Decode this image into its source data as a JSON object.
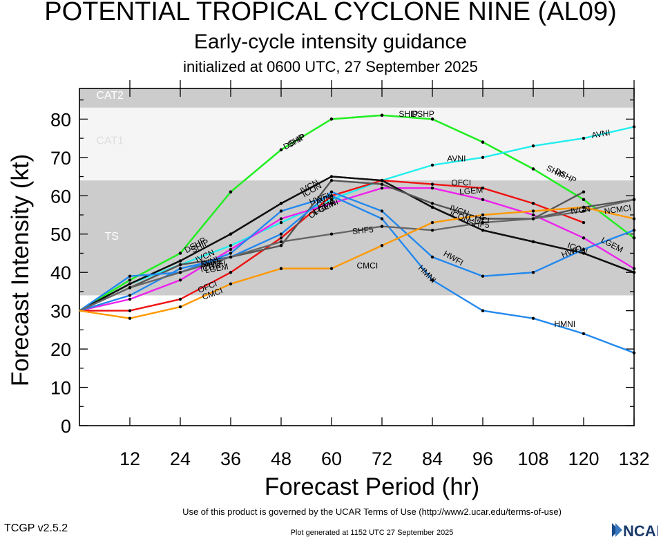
{
  "header": {
    "title": "POTENTIAL TROPICAL CYCLONE NINE (AL09)",
    "subtitle": "Early-cycle intensity guidance",
    "init": "initialized at 0600 UTC, 27 September 2025"
  },
  "footer": {
    "terms": "Use of this product is governed by the UCAR Terms of Use (http://www2.ucar.edu/terms-of-use)",
    "version": "TCGP v2.5.2",
    "generated": "Plot generated at 1152 UTC   27 September 2025",
    "logo_text": "NCAR"
  },
  "chart_data": {
    "type": "line",
    "title": "POTENTIAL TROPICAL CYCLONE NINE (AL09)",
    "xlabel": "Forecast Period (hr)",
    "ylabel": "Forecast Intensity (kt)",
    "xlim": [
      0,
      132
    ],
    "ylim": [
      0,
      88
    ],
    "xticks": [
      12,
      24,
      36,
      48,
      60,
      72,
      84,
      96,
      108,
      120,
      132
    ],
    "yticks": [
      0,
      10,
      20,
      30,
      40,
      50,
      60,
      70,
      80
    ],
    "bands": [
      {
        "name": "TS",
        "range": [
          34,
          64
        ],
        "color": "#cccccc"
      },
      {
        "name": "CAT1",
        "range": [
          64,
          83
        ],
        "color": "#f5f5f5"
      },
      {
        "name": "CAT2",
        "range": [
          83,
          88
        ],
        "color": "#cccccc"
      }
    ],
    "series": [
      {
        "name": "DSHP",
        "color": "#22ee22",
        "x": [
          0,
          12,
          24,
          36,
          48,
          60,
          72,
          84,
          96,
          108,
          120,
          132
        ],
        "y": [
          30,
          38,
          45,
          61,
          72,
          80,
          81,
          80,
          74,
          67,
          59,
          49
        ]
      },
      {
        "name": "SHIP",
        "color": "#22ee22",
        "x": [
          0,
          12,
          24,
          36,
          48,
          60,
          72,
          84,
          96,
          108,
          120,
          132
        ],
        "y": [
          30,
          38,
          45,
          61,
          72,
          80,
          81,
          80,
          74,
          67,
          59,
          49
        ]
      },
      {
        "name": "AVNI",
        "color": "#22eeee",
        "x": [
          0,
          12,
          24,
          36,
          48,
          60,
          72,
          84,
          96,
          108,
          120,
          132
        ],
        "y": [
          30,
          37,
          42,
          47,
          53,
          59,
          64,
          68,
          70,
          73,
          75,
          78
        ]
      },
      {
        "name": "OFCI",
        "color": "#ee1111",
        "x": [
          0,
          12,
          24,
          36,
          48,
          60,
          72,
          84,
          96,
          108,
          120
        ],
        "y": [
          30,
          30,
          33,
          40,
          49,
          60,
          64,
          63,
          62,
          58,
          53
        ]
      },
      {
        "name": "LGEM",
        "color": "#ee22ee",
        "x": [
          0,
          12,
          24,
          36,
          48,
          60,
          72,
          84,
          96,
          108,
          120,
          132
        ],
        "y": [
          30,
          33,
          38,
          46,
          54,
          58,
          62,
          62,
          59,
          55,
          49,
          41
        ]
      },
      {
        "name": "IVCN",
        "color": "#111111",
        "x": [
          0,
          12,
          24,
          36,
          48,
          60,
          72,
          84,
          96,
          108,
          120,
          132
        ],
        "y": [
          30,
          37,
          43,
          50,
          58,
          65,
          64,
          57,
          51,
          48,
          45,
          40
        ]
      },
      {
        "name": "ICON",
        "color": "#111111",
        "x": [
          0,
          12,
          24,
          36,
          48,
          60,
          72,
          84,
          96,
          108,
          120,
          132
        ],
        "y": [
          30,
          37,
          43,
          50,
          58,
          65,
          64,
          57,
          51,
          48,
          45,
          40
        ]
      },
      {
        "name": "IVCN",
        "color": "#555555",
        "x": [
          0,
          12,
          24,
          36,
          48,
          60,
          72,
          84,
          96,
          108,
          120,
          132
        ],
        "y": [
          30,
          36,
          42,
          44,
          47,
          64,
          63,
          58,
          54,
          54,
          57,
          59
        ]
      },
      {
        "name": "NCMCI",
        "color": "#555555",
        "x": [
          108,
          120
        ],
        "y": [
          54,
          61
        ]
      },
      {
        "name": "HWFI",
        "color": "#2288ee",
        "x": [
          0,
          12,
          24,
          36,
          48,
          60,
          72,
          84,
          96,
          108,
          120,
          132
        ],
        "y": [
          30,
          34,
          41,
          44,
          50,
          61,
          56,
          44,
          39,
          40,
          46,
          51
        ]
      },
      {
        "name": "HMNI",
        "color": "#2288ee",
        "x": [
          0,
          12,
          24,
          36,
          48,
          60,
          72,
          84,
          96,
          108,
          120,
          132
        ],
        "y": [
          30,
          39,
          40,
          45,
          56,
          60,
          54,
          38,
          30,
          28,
          24,
          19
        ]
      },
      {
        "name": "SHF5",
        "color": "#666666",
        "x": [
          0,
          12,
          24,
          36,
          48,
          60,
          72,
          84,
          96,
          108,
          120,
          132
        ],
        "y": [
          30,
          36,
          40,
          44,
          48,
          50,
          52,
          51,
          53,
          54,
          56,
          59
        ]
      },
      {
        "name": "CMCI",
        "color": "#ff9900",
        "x": [
          0,
          12,
          24,
          36,
          48,
          60,
          72,
          84,
          96,
          108,
          120,
          132
        ],
        "y": [
          30,
          28,
          31,
          37,
          41,
          41,
          47,
          53,
          55,
          56,
          57,
          54
        ]
      }
    ],
    "labels": [
      {
        "text": "CAT2",
        "x": 4,
        "y": 85.3,
        "color": "#ffffff",
        "size": 16
      },
      {
        "text": "CAT1",
        "x": 4,
        "y": 73.5,
        "color": "#dddddd",
        "size": 16
      },
      {
        "text": "TS",
        "x": 6,
        "y": 48.5,
        "color": "#ffffff",
        "size": 16
      },
      {
        "text": "SHIP",
        "x": 27,
        "y": 45,
        "color": "#000000",
        "size": 12,
        "rot": -30
      },
      {
        "text": "DSHP",
        "x": 25.5,
        "y": 45,
        "color": "#000000",
        "size": 12,
        "rot": -30
      },
      {
        "text": "SHIP",
        "x": 50,
        "y": 72.5,
        "color": "#000000",
        "size": 12,
        "rot": -30
      },
      {
        "text": "DSHP",
        "x": 49,
        "y": 72,
        "color": "#000000",
        "size": 12,
        "rot": -30
      },
      {
        "text": "SHIP",
        "x": 76,
        "y": 80.6,
        "color": "#000000",
        "size": 12,
        "rot": 0
      },
      {
        "text": "DSHP",
        "x": 79,
        "y": 80.6,
        "color": "#000000",
        "size": 12,
        "rot": 0
      },
      {
        "text": "SHIP",
        "x": 111,
        "y": 66.8,
        "color": "#000000",
        "size": 12,
        "rot": 28
      },
      {
        "text": "DSHP",
        "x": 113,
        "y": 66,
        "color": "#000000",
        "size": 12,
        "rot": 28
      },
      {
        "text": "AVNI",
        "x": 87.5,
        "y": 69,
        "color": "#000000",
        "size": 12,
        "rot": 0
      },
      {
        "text": "AVNI",
        "x": 122,
        "y": 75,
        "color": "#000000",
        "size": 12,
        "rot": -10
      },
      {
        "text": "IVCN",
        "x": 28,
        "y": 42.5,
        "color": "#000000",
        "size": 12,
        "rot": -25
      },
      {
        "text": "AVNI",
        "x": 29,
        "y": 41.2,
        "color": "#000000",
        "size": 12,
        "rot": -20
      },
      {
        "text": "ICON",
        "x": 29,
        "y": 40,
        "color": "#000000",
        "size": 12,
        "rot": -15
      },
      {
        "text": "SHF5",
        "x": 29,
        "y": 41.3,
        "color": "#000000",
        "size": 12,
        "rot": -10
      },
      {
        "text": "LGEM",
        "x": 30,
        "y": 39.8,
        "color": "#000000",
        "size": 12,
        "rot": -10
      },
      {
        "text": "HWFI",
        "x": 30,
        "y": 40.8,
        "color": "#000000",
        "size": 12,
        "rot": -10
      },
      {
        "text": "OFCI",
        "x": 28.5,
        "y": 34.6,
        "color": "#000000",
        "size": 12,
        "rot": -22
      },
      {
        "text": "CMCI",
        "x": 29.5,
        "y": 32.8,
        "color": "#000000",
        "size": 12,
        "rot": -20
      },
      {
        "text": "IVCN",
        "x": 53,
        "y": 60.5,
        "color": "#000000",
        "size": 12,
        "rot": -30
      },
      {
        "text": "ICON",
        "x": 53.5,
        "y": 59.5,
        "color": "#000000",
        "size": 12,
        "rot": -30
      },
      {
        "text": "HWFI",
        "x": 55,
        "y": 57.6,
        "color": "#000000",
        "size": 12,
        "rot": -20
      },
      {
        "text": "AVNI",
        "x": 56.5,
        "y": 57.6,
        "color": "#000000",
        "size": 12,
        "rot": -20
      },
      {
        "text": "HMNI",
        "x": 57,
        "y": 56,
        "color": "#000000",
        "size": 12,
        "rot": -20
      },
      {
        "text": "LGEM",
        "x": 56,
        "y": 55,
        "color": "#000000",
        "size": 12,
        "rot": -25
      },
      {
        "text": "OFCI",
        "x": 55,
        "y": 54,
        "color": "#000000",
        "size": 12,
        "rot": -30
      },
      {
        "text": "SHF5",
        "x": 65,
        "y": 50,
        "color": "#000000",
        "size": 12,
        "rot": -5
      },
      {
        "text": "CMCI",
        "x": 66,
        "y": 41,
        "color": "#000000",
        "size": 12,
        "rot": 0
      },
      {
        "text": "OFCI",
        "x": 88.5,
        "y": 62.7,
        "color": "#000000",
        "size": 12,
        "rot": 0
      },
      {
        "text": "LGEM",
        "x": 90.5,
        "y": 60.3,
        "color": "#000000",
        "size": 12,
        "rot": -5
      },
      {
        "text": "IVCN",
        "x": 88,
        "y": 56.3,
        "color": "#000000",
        "size": 12,
        "rot": 20
      },
      {
        "text": "ICON",
        "x": 88,
        "y": 54.8,
        "color": "#000000",
        "size": 12,
        "rot": 20
      },
      {
        "text": "CMCI",
        "x": 92.5,
        "y": 53.7,
        "color": "#000000",
        "size": 12,
        "rot": 10
      },
      {
        "text": "SHF5",
        "x": 92.5,
        "y": 52.3,
        "color": "#000000",
        "size": 12,
        "rot": 8
      },
      {
        "text": "HWFI",
        "x": 86.5,
        "y": 44.5,
        "color": "#000000",
        "size": 12,
        "rot": 30
      },
      {
        "text": "HMNI",
        "x": 80.5,
        "y": 41,
        "color": "#000000",
        "size": 12,
        "rot": 45
      },
      {
        "text": "IVCN",
        "x": 117,
        "y": 55.2,
        "color": "#000000",
        "size": 12,
        "rot": -8
      },
      {
        "text": "NCMCI",
        "x": 125,
        "y": 55.2,
        "color": "#000000",
        "size": 12,
        "rot": -8
      },
      {
        "text": "LGEM",
        "x": 124,
        "y": 48,
        "color": "#000000",
        "size": 12,
        "rot": 28
      },
      {
        "text": "ICON",
        "x": 116,
        "y": 46.5,
        "color": "#000000",
        "size": 12,
        "rot": 20
      },
      {
        "text": "HWFI",
        "x": 115,
        "y": 43.8,
        "color": "#000000",
        "size": 12,
        "rot": -20
      },
      {
        "text": "HMNI",
        "x": 113,
        "y": 25.8,
        "color": "#000000",
        "size": 12,
        "rot": 0
      }
    ]
  }
}
